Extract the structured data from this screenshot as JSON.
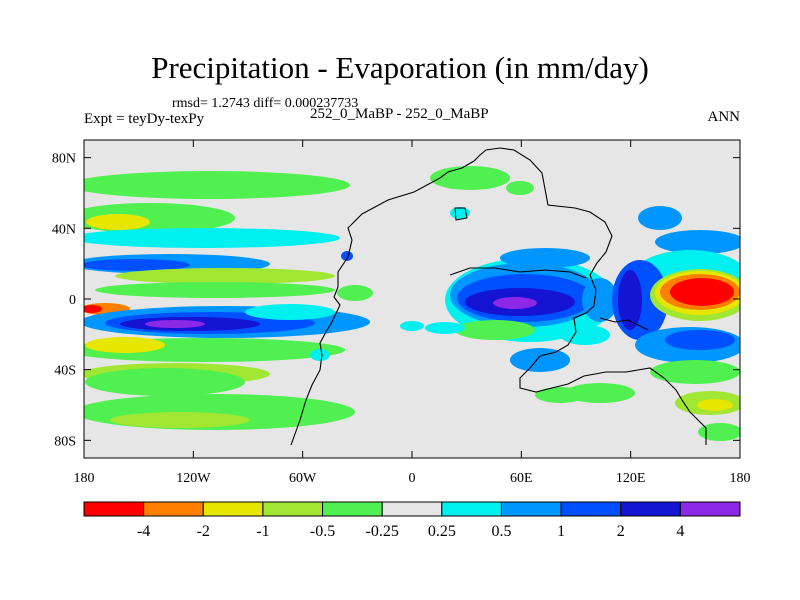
{
  "title": "Precipitation - Evaporation (in mm/day)",
  "stats": "rmsd= 1.2743 diff= 0.000237733",
  "experiment": "Expt = teyDy-texPy",
  "subtitle": "252_0_MaBP - 252_0_MaBP",
  "season": "ANN",
  "map": {
    "background_color": "#e6e6e6",
    "coastline_color": "#000000",
    "lon_range": [
      -180,
      180
    ],
    "lat_range": [
      -90,
      90
    ],
    "x_ticks": [
      {
        "value": -180,
        "label": "180"
      },
      {
        "value": -120,
        "label": "120W"
      },
      {
        "value": -60,
        "label": "60W"
      },
      {
        "value": 0,
        "label": "0"
      },
      {
        "value": 60,
        "label": "60E"
      },
      {
        "value": 120,
        "label": "120E"
      },
      {
        "value": 180,
        "label": "180"
      }
    ],
    "y_ticks": [
      {
        "value": 80,
        "label": "80N"
      },
      {
        "value": 40,
        "label": "40N"
      },
      {
        "value": 0,
        "label": "0"
      },
      {
        "value": -40,
        "label": "40S"
      },
      {
        "value": -80,
        "label": "80S"
      }
    ]
  },
  "colorbar": {
    "colors": [
      "#ff0000",
      "#ff8000",
      "#e6e600",
      "#a0e632",
      "#50f050",
      "#e6e6e6",
      "#00f0f0",
      "#0096ff",
      "#0050ff",
      "#1414d2",
      "#8c28e6"
    ],
    "labels": [
      "-4",
      "-2",
      "-1",
      "-0.5",
      "-0.25",
      "0.25",
      "0.5",
      "1",
      "2",
      "4"
    ]
  }
}
